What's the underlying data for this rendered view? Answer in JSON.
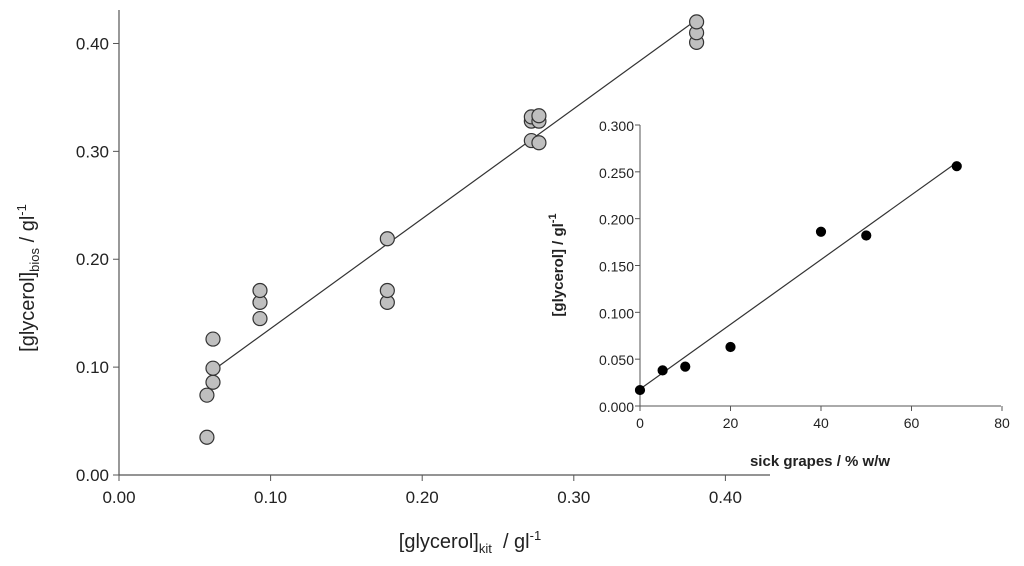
{
  "chart_data": [
    {
      "type": "scatter",
      "name": "main",
      "x_axis": {
        "base": "[glycerol]",
        "subscript": "kit",
        "unit_base": "  / gl",
        "unit_sup": "-1",
        "range": [
          0,
          0.43
        ],
        "ticks": [
          "0.00",
          "0.10",
          "0.20",
          "0.30",
          "0.40"
        ]
      },
      "y_axis": {
        "base": "[glycerol]",
        "subscript": "bios",
        "unit_base": " / gl",
        "unit_sup": "-1",
        "range": [
          0,
          0.43
        ],
        "ticks": [
          "0.00",
          "0.10",
          "0.20",
          "0.30",
          "0.40"
        ]
      },
      "grid": false,
      "marker": {
        "fill": "#bfbfbf",
        "stroke": "#333333"
      },
      "points": [
        {
          "x": 0.058,
          "y": 0.035
        },
        {
          "x": 0.058,
          "y": 0.074
        },
        {
          "x": 0.062,
          "y": 0.086
        },
        {
          "x": 0.062,
          "y": 0.099
        },
        {
          "x": 0.062,
          "y": 0.126
        },
        {
          "x": 0.093,
          "y": 0.145
        },
        {
          "x": 0.093,
          "y": 0.16
        },
        {
          "x": 0.093,
          "y": 0.171
        },
        {
          "x": 0.177,
          "y": 0.16
        },
        {
          "x": 0.177,
          "y": 0.171
        },
        {
          "x": 0.177,
          "y": 0.219
        },
        {
          "x": 0.272,
          "y": 0.31
        },
        {
          "x": 0.272,
          "y": 0.328
        },
        {
          "x": 0.272,
          "y": 0.332
        },
        {
          "x": 0.277,
          "y": 0.308
        },
        {
          "x": 0.277,
          "y": 0.328
        },
        {
          "x": 0.277,
          "y": 0.333
        },
        {
          "x": 0.381,
          "y": 0.401
        },
        {
          "x": 0.381,
          "y": 0.41
        },
        {
          "x": 0.381,
          "y": 0.42
        }
      ],
      "fit_line": {
        "x": [
          0.062,
          0.381
        ],
        "y": [
          0.097,
          0.422
        ]
      }
    },
    {
      "type": "scatter",
      "name": "inset",
      "x_axis": {
        "label": "sick grapes / % w/w",
        "range": [
          0,
          80
        ],
        "ticks": [
          "0",
          "20",
          "40",
          "60",
          "80"
        ]
      },
      "y_axis": {
        "base": "[glycerol] / gl",
        "unit_sup": "-1",
        "range": [
          0,
          0.3
        ],
        "ticks": [
          "0.000",
          "0.050",
          "0.100",
          "0.150",
          "0.200",
          "0.250",
          "0.300"
        ]
      },
      "grid": false,
      "marker": {
        "fill": "#000000",
        "stroke": "#000000"
      },
      "points": [
        {
          "x": 0,
          "y": 0.017
        },
        {
          "x": 5,
          "y": 0.038
        },
        {
          "x": 10,
          "y": 0.042
        },
        {
          "x": 20,
          "y": 0.063
        },
        {
          "x": 40,
          "y": 0.186
        },
        {
          "x": 50,
          "y": 0.182
        },
        {
          "x": 70,
          "y": 0.256
        }
      ],
      "fit_line": {
        "x": [
          0,
          70
        ],
        "y": [
          0.018,
          0.26
        ]
      }
    }
  ]
}
